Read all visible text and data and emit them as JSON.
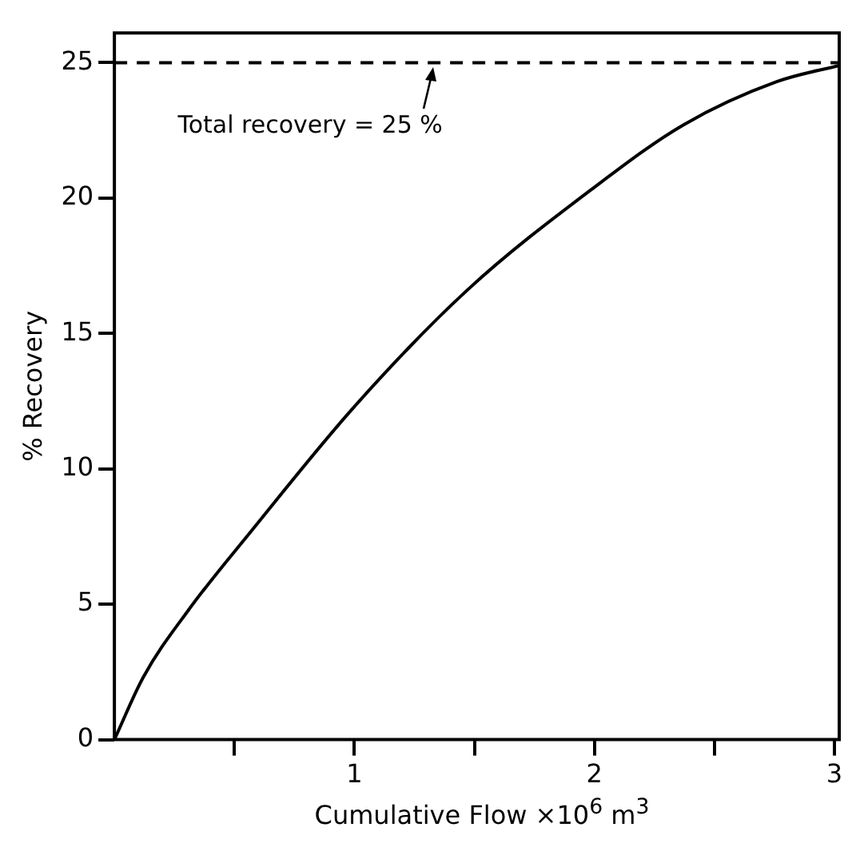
{
  "chart_data": {
    "type": "line",
    "xlabel": "Cumulative Flow ×10$^{6}$ m$^{3}$",
    "ylabel": "% Recovery",
    "x": [
      0,
      0.12,
      0.31,
      0.57,
      1.0,
      1.47,
      2.0,
      2.37,
      2.76,
      3.02
    ],
    "series": [
      {
        "color": "#000000",
        "values": [
          0,
          2.3,
          4.8,
          7.7,
          12.3,
          16.6,
          20.4,
          22.7,
          24.3,
          24.9
        ]
      }
    ],
    "xlim": [
      0,
      3.02
    ],
    "ylim": [
      0,
      26.1
    ],
    "xticks": [
      {
        "value": 0.5,
        "label": null
      },
      1,
      {
        "value": 1.5,
        "label": null
      },
      2,
      {
        "value": 2.5,
        "label": null
      },
      3
    ],
    "yticks": [
      0,
      5,
      10,
      15,
      20,
      25
    ],
    "ref_lines": [
      {
        "axis": "y",
        "value": 25,
        "line_style": "dashed",
        "color": "#000000"
      }
    ],
    "annotations": [
      {
        "text": "Total recovery = 25 %",
        "x": 1.33,
        "y": 25
      }
    ],
    "grid": false,
    "legend": false,
    "marker": "none",
    "line_style": "solid"
  }
}
